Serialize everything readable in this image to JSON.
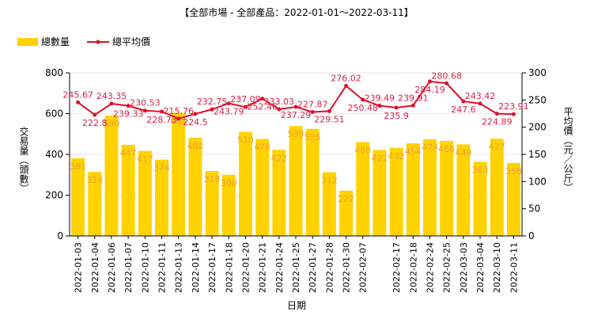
{
  "chart_data": {
    "type": "bar-line",
    "title": "【全部市場 - 全部產品：2022-01-01～2022-03-11】",
    "xlabel": "日期",
    "ylabel": "交易量（頭數）",
    "y2label": "平均價（元／公斤）",
    "categories": [
      "2022-01-03",
      "2022-01-04",
      "2022-01-06",
      "2022-01-07",
      "2022-01-10",
      "2022-01-11",
      "2022-01-13",
      "2022-01-14",
      "2022-01-17",
      "2022-01-18",
      "2022-01-20",
      "2022-01-21",
      "2022-01-24",
      "2022-01-25",
      "2022-01-27",
      "2022-01-28",
      "2022-01-30",
      "2022-02-07",
      null,
      "2022-02-17",
      "2022-02-18",
      "2022-02-24",
      "2022-02-25",
      "2022-03-03",
      "2022-03-04",
      "2022-03-10",
      "2022-03-11"
    ],
    "series": [
      {
        "name": "總數量",
        "color": "#ffd200",
        "label_color": "#f0a040",
        "values": [
          381,
          314,
          590,
          447,
          417,
          374,
          604,
          482,
          318,
          300,
          510,
          476,
          422,
          539,
          525,
          312,
          222,
          460,
          421,
          432,
          454,
          474,
          466,
          449,
          363,
          477,
          358
        ]
      },
      {
        "name": "總平均價",
        "color": "#e0102a",
        "label_color": "#d8204a",
        "axis": "y2",
        "values": [
          245.67,
          222.8,
          243.35,
          239.33,
          230.53,
          228.73,
          215.76,
          224.5,
          232.75,
          243.79,
          237.09,
          252.46,
          233.03,
          237.29,
          227.87,
          229.51,
          276.02,
          250.48,
          239.49,
          235.9,
          239.91,
          284.19,
          280.68,
          247.6,
          243.42,
          224.89,
          223.91
        ]
      }
    ],
    "ylim": [
      0,
      800
    ],
    "yticks": [
      0,
      200,
      400,
      600,
      800
    ],
    "y2lim": [
      0,
      300
    ],
    "y2ticks": [
      0,
      50,
      100,
      150,
      200,
      250,
      300
    ],
    "grid": true
  }
}
